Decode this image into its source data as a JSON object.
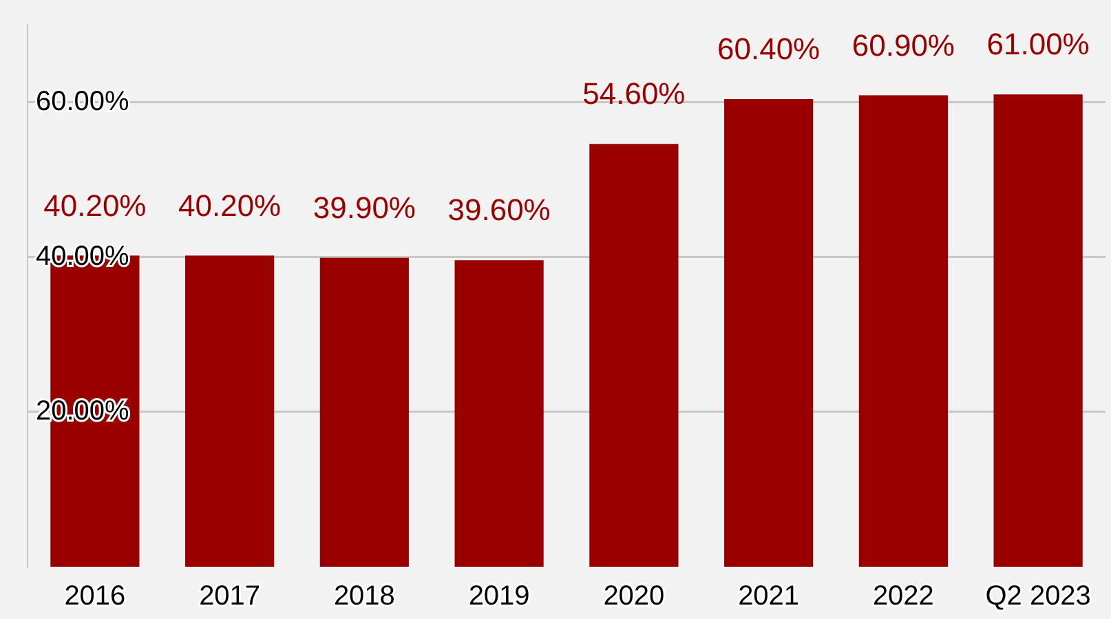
{
  "chart_data": {
    "type": "bar",
    "categories": [
      "2016",
      "2017",
      "2018",
      "2019",
      "2020",
      "2021",
      "2022",
      "Q2 2023"
    ],
    "values": [
      40.2,
      40.2,
      39.9,
      39.6,
      54.6,
      60.4,
      60.9,
      61.0
    ],
    "value_labels": [
      "40.20%",
      "40.20%",
      "39.90%",
      "39.60%",
      "54.60%",
      "60.40%",
      "60.90%",
      "61.00%"
    ],
    "color": "#990000",
    "ylim": [
      0,
      70
    ],
    "yticks": [
      {
        "value": 20,
        "label": "20.00%"
      },
      {
        "value": 40,
        "label": "40.00%"
      },
      {
        "value": 60,
        "label": "60.00%"
      }
    ],
    "grid": "y",
    "legend": false
  }
}
